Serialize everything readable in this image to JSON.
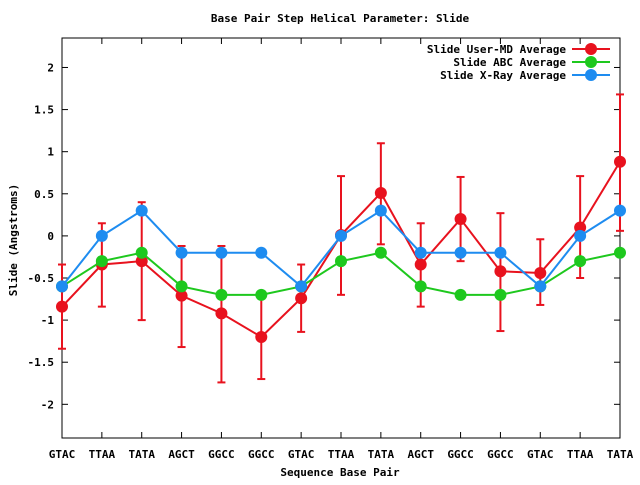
{
  "chart_data": {
    "type": "line",
    "title": "Base Pair Step Helical Parameter: Slide",
    "xlabel": "Sequence Base Pair",
    "ylabel": "Slide (Angstroms)",
    "categories": [
      "GTAC",
      "TTAA",
      "TATA",
      "AGCT",
      "GGCC",
      "GGCC",
      "GTAC",
      "TTAA",
      "TATA",
      "AGCT",
      "GGCC",
      "GGCC",
      "GTAC",
      "TTAA",
      "TATA"
    ],
    "ylim": [
      -2.4,
      2.35
    ],
    "yticks": [
      -2,
      -1.5,
      -1,
      -0.5,
      0,
      0.5,
      1,
      1.5,
      2
    ],
    "ytick_labels": [
      "-2",
      "-1.5",
      "-1",
      "-0.5",
      "0",
      "0.5",
      "1",
      "1.5",
      "2"
    ],
    "grid": false,
    "legend_position": "top-right",
    "series": [
      {
        "name": "Slide User-MD Average",
        "color": "#e8121e",
        "values": [
          -0.84,
          -0.34,
          -0.3,
          -0.71,
          -0.92,
          -1.2,
          -0.74,
          0.01,
          0.51,
          -0.34,
          0.2,
          -0.42,
          -0.44,
          0.1,
          0.88
        ],
        "error_low": [
          -1.34,
          -0.84,
          -1.0,
          -1.32,
          -1.74,
          -1.7,
          -1.14,
          -0.7,
          -0.1,
          -0.84,
          -0.3,
          -1.13,
          -0.82,
          -0.5,
          0.06
        ],
        "error_high": [
          -0.34,
          0.15,
          0.4,
          -0.12,
          -0.12,
          -0.7,
          -0.34,
          0.71,
          1.1,
          0.15,
          0.7,
          0.27,
          -0.04,
          0.71,
          1.68
        ]
      },
      {
        "name": "Slide ABC Average",
        "color": "#1ec81e",
        "values": [
          -0.6,
          -0.3,
          -0.2,
          -0.6,
          -0.7,
          -0.7,
          -0.6,
          -0.3,
          -0.2,
          -0.6,
          -0.7,
          -0.7,
          -0.6,
          -0.3,
          -0.2
        ]
      },
      {
        "name": "Slide X-Ray Average",
        "color": "#1e8cf0",
        "values": [
          -0.6,
          0.0,
          0.3,
          -0.2,
          -0.2,
          -0.2,
          -0.6,
          0.0,
          0.3,
          -0.2,
          -0.2,
          -0.2,
          -0.6,
          0.0,
          0.3
        ]
      }
    ]
  }
}
